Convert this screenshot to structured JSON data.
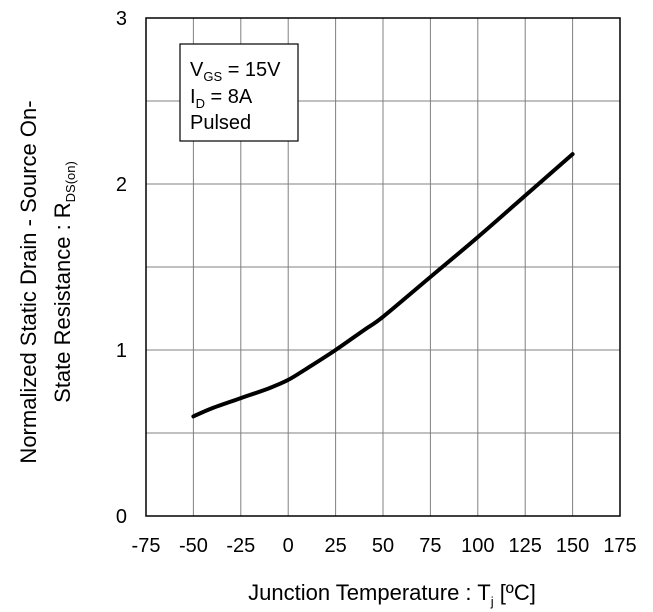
{
  "chart_data": {
    "type": "line",
    "xlabel": {
      "main": "Junction Temperature : T",
      "sub": "j",
      "suffix": " [ºC]"
    },
    "ylabel": {
      "line1": "Normalized Static Drain - Source On-",
      "line2_main": "State Resistance : R",
      "line2_sub": "DS(on)"
    },
    "xlim": [
      -75,
      175
    ],
    "ylim": [
      0,
      3
    ],
    "x_ticks": [
      -75,
      -50,
      -25,
      0,
      25,
      50,
      75,
      100,
      125,
      150,
      175
    ],
    "y_ticks": [
      0,
      1,
      2,
      3
    ],
    "x_tick_labels": [
      "-75",
      "-50",
      "-25",
      "0",
      "25",
      "50",
      "75",
      "100",
      "125",
      "150",
      "175"
    ],
    "y_tick_labels": [
      "0",
      "1",
      "2",
      "3"
    ],
    "grid": true,
    "legend_box": {
      "placement": "top-left",
      "lines": [
        {
          "main": "V",
          "sub": "GS",
          "rest": " = 15V"
        },
        {
          "main": "I",
          "sub": "D",
          "rest": " = 8A"
        },
        {
          "main": "Pulsed",
          "sub": "",
          "rest": ""
        }
      ]
    },
    "series": [
      {
        "x": [
          -50,
          -40,
          -25,
          -10,
          0,
          10,
          25,
          40,
          50,
          75,
          100,
          125,
          150
        ],
        "y": [
          0.6,
          0.65,
          0.71,
          0.77,
          0.82,
          0.89,
          1.0,
          1.12,
          1.2,
          1.44,
          1.68,
          1.93,
          2.18
        ]
      }
    ],
    "line_color": "#000000",
    "grid_color": "#808080"
  }
}
